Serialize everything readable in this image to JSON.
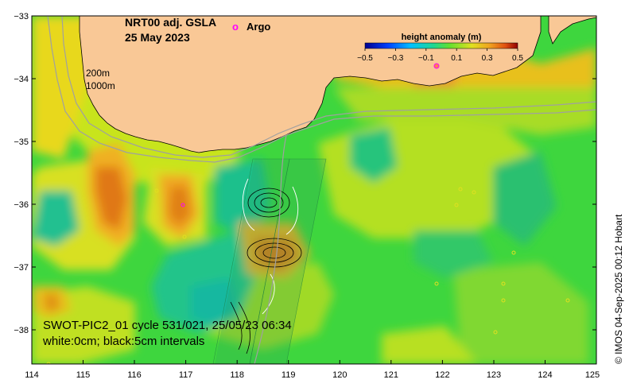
{
  "title": {
    "line1": "NRT00 adj. GSLA",
    "line2": "25 May 2023"
  },
  "argo_legend": {
    "marker": "o",
    "label": "Argo",
    "color": "#ff00ff"
  },
  "contour_labels": {
    "shallow": "200m",
    "deep": "1000m"
  },
  "colorbar": {
    "title": "height anomaly (m)",
    "ticks": [
      "−0.5",
      "−0.3",
      "−0.1",
      "0.1",
      "0.3",
      "0.5"
    ],
    "range": [
      -0.5,
      0.5
    ]
  },
  "swot_caption": {
    "line1": "SWOT-PIC2_01 cycle 531/021, 25/05/23 06:34",
    "line2": "white:0cm; black:5cm intervals"
  },
  "copyright": "© IMOS 04-Sep-2025 00:12 Hobart",
  "axes": {
    "x_ticks": [
      "114",
      "115",
      "116",
      "117",
      "118",
      "119",
      "120",
      "121",
      "122",
      "123",
      "124",
      "125"
    ],
    "y_ticks": [
      "−33",
      "−34",
      "−35",
      "−36",
      "−37",
      "−38"
    ],
    "x_range": [
      114,
      125
    ],
    "y_range": [
      -38.55,
      -33
    ]
  },
  "colors": {
    "land": "#f9c896",
    "background_field": "#3ed63e"
  }
}
